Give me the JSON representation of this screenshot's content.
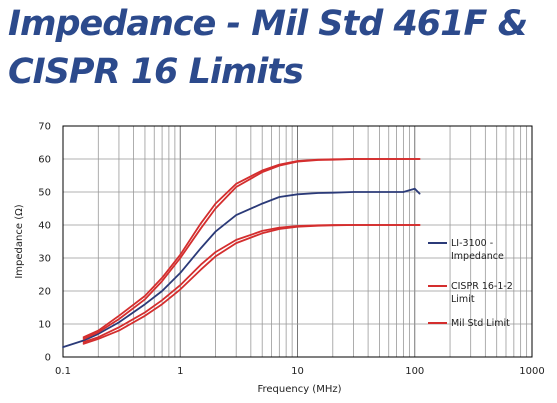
{
  "slide": {
    "title_line1": "Impedance - Mil Std 461F &",
    "title_line2": "CISPR 16 Limits"
  },
  "chart_data": {
    "type": "line",
    "xscale": "log",
    "xlabel": "Frequency (MHz)",
    "ylabel": "Impedance (Ω)",
    "xlim": [
      0.1,
      1000
    ],
    "ylim": [
      0,
      70
    ],
    "xticks": [
      "0.1",
      "1",
      "10",
      "100",
      "1000"
    ],
    "yticks": [
      "0",
      "10",
      "20",
      "30",
      "40",
      "50",
      "60",
      "70"
    ],
    "grid": true,
    "legend_position": "right",
    "series": [
      {
        "name": "LI-3100 - Impedance",
        "color": "#2b3a78",
        "x": [
          0.1,
          0.15,
          0.2,
          0.3,
          0.5,
          0.7,
          1,
          1.5,
          2,
          3,
          5,
          7,
          10,
          15,
          20,
          30,
          50,
          70,
          80,
          90,
          100,
          110
        ],
        "y": [
          3,
          5,
          7,
          10.5,
          16,
          20,
          25.5,
          33,
          38,
          43,
          46.5,
          48.5,
          49.3,
          49.7,
          49.8,
          50,
          50,
          50,
          50,
          50.5,
          51,
          49.5
        ]
      },
      {
        "name": "CISPR 16-1-2 Limit",
        "color": "#d42e2e",
        "sets": [
          {
            "x": [
              0.15,
              0.2,
              0.3,
              0.5,
              0.7,
              1,
              1.5,
              2,
              3,
              5,
              7,
              10,
              15,
              20,
              30,
              50,
              70,
              100,
              110
            ],
            "y": [
              5.5,
              7.5,
              11.5,
              17.5,
              23,
              30,
              39,
              45,
              51.5,
              56,
              58,
              59.2,
              59.7,
              59.8,
              60,
              60,
              60,
              60,
              60
            ]
          },
          {
            "x": [
              0.15,
              0.2,
              0.3,
              0.5,
              0.7,
              1,
              1.5,
              2,
              3,
              5,
              7,
              10,
              15,
              20,
              30,
              50,
              70,
              100,
              110
            ],
            "y": [
              4,
              5.5,
              8,
              12.5,
              16,
              20.5,
              26.5,
              30.5,
              34.5,
              37.5,
              38.8,
              39.5,
              39.8,
              39.9,
              40,
              40,
              40,
              40,
              40
            ]
          }
        ]
      },
      {
        "name": "Mil Std Limit",
        "color": "#d42e2e",
        "sets": [
          {
            "x": [
              0.15,
              0.2,
              0.3,
              0.5,
              0.7,
              1,
              1.5,
              2,
              3,
              5,
              7,
              10,
              15,
              20,
              30,
              50,
              70,
              100,
              110
            ],
            "y": [
              6,
              8,
              12.5,
              18.5,
              24,
              31,
              40.5,
              46.5,
              52.5,
              56.5,
              58.3,
              59.4,
              59.8,
              59.9,
              60,
              60,
              60,
              60,
              60
            ]
          },
          {
            "x": [
              0.15,
              0.2,
              0.3,
              0.5,
              0.7,
              1,
              1.5,
              2,
              3,
              5,
              7,
              10,
              15,
              20,
              30,
              50,
              70,
              100,
              110
            ],
            "y": [
              4.5,
              6,
              9,
              13.5,
              17.2,
              21.8,
              28,
              31.8,
              35.5,
              38.2,
              39.2,
              39.7,
              39.9,
              40,
              40,
              40,
              40,
              40,
              40
            ]
          }
        ]
      }
    ],
    "legend": [
      {
        "lines": [
          "LI-3100 -",
          "Impedance"
        ],
        "color": "#2b3a78"
      },
      {
        "lines": [
          "CISPR 16-1-2",
          "Limit"
        ],
        "color": "#d42e2e"
      },
      {
        "lines": [
          "Mil Std Limit"
        ],
        "color": "#d42e2e"
      }
    ]
  }
}
